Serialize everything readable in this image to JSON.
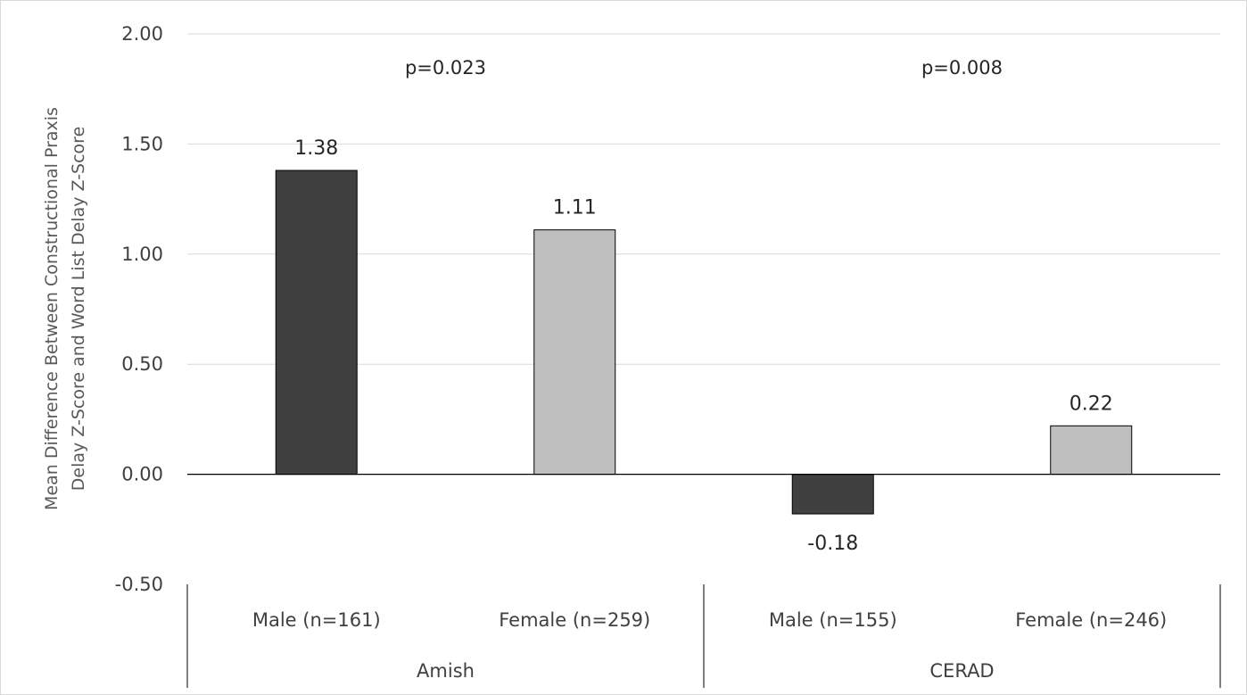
{
  "chart_data": {
    "type": "bar",
    "ylabel_lines": [
      "Mean Difference Between Constructional Praxis",
      "Delay Z-Score and Word List Delay Z-Score"
    ],
    "ylim": [
      -0.5,
      2.0
    ],
    "yticks": [
      -0.5,
      0.0,
      0.5,
      1.0,
      1.5,
      2.0
    ],
    "ytick_labels": [
      "-0.50",
      "0.00",
      "0.50",
      "1.00",
      "1.50",
      "2.00"
    ],
    "grid": true,
    "groups": [
      {
        "name": "Amish",
        "annotation": "p=0.023",
        "bars": [
          {
            "category": "Male (n=161)",
            "value": 1.38,
            "label": "1.38",
            "color": "#404040"
          },
          {
            "category": "Female (n=259)",
            "value": 1.11,
            "label": "1.11",
            "color": "#bfbfbf"
          }
        ]
      },
      {
        "name": "CERAD",
        "annotation": "p=0.008",
        "bars": [
          {
            "category": "Male (n=155)",
            "value": -0.18,
            "label": "-0.18",
            "color": "#404040"
          },
          {
            "category": "Female (n=246)",
            "value": 0.22,
            "label": "0.22",
            "color": "#bfbfbf"
          }
        ]
      }
    ]
  }
}
